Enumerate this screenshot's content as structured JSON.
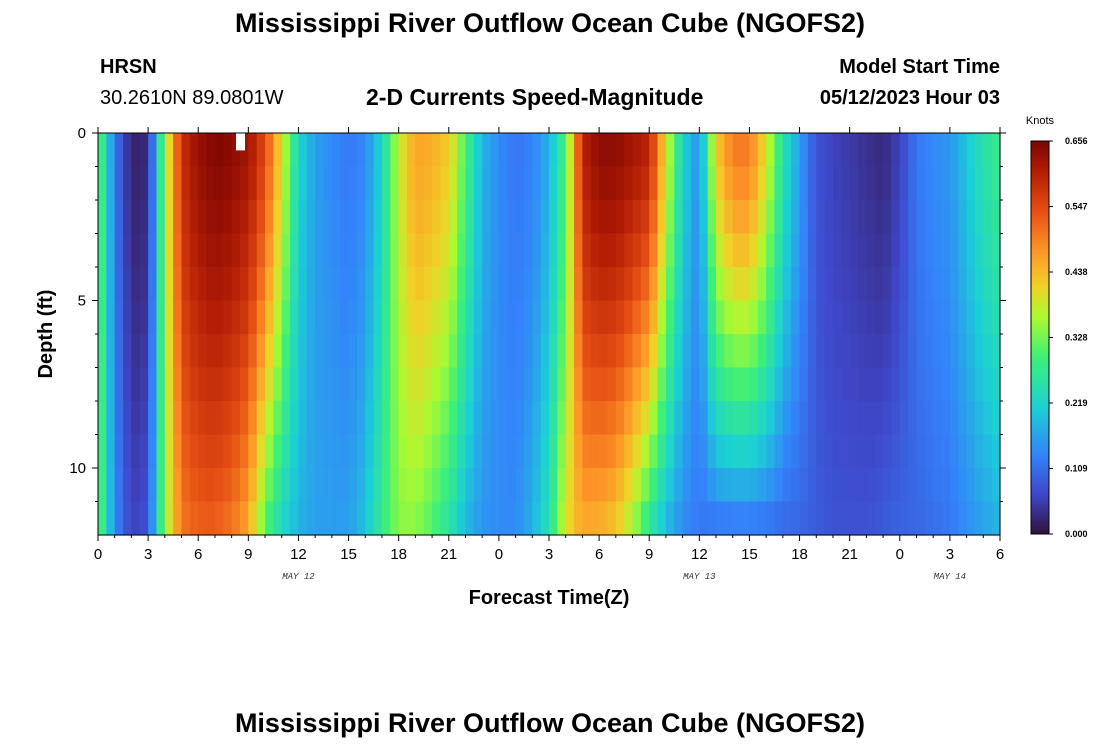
{
  "header": {
    "title": "Mississippi River Outflow Ocean Cube (NGOFS2)",
    "station": "HRSN",
    "coords": "30.2610N  89.0801W",
    "subtitle": "2-D Currents Speed-Magnitude",
    "model_start_label": "Model Start Time",
    "model_start_value": "05/12/2023 Hour 03"
  },
  "footer": {
    "title": "Mississippi River Outflow Ocean Cube (NGOFS2)"
  },
  "chart_data": {
    "type": "heatmap",
    "title": "2-D Currents Speed-Magnitude",
    "xlabel": "Forecast Time(Z)",
    "ylabel": "Depth (ft)",
    "xlim": [
      0,
      54
    ],
    "ylim": [
      12,
      0
    ],
    "x_ticks": [
      {
        "value": 0,
        "label": "0"
      },
      {
        "value": 3,
        "label": "3"
      },
      {
        "value": 6,
        "label": "6"
      },
      {
        "value": 9,
        "label": "9"
      },
      {
        "value": 12,
        "label": "12"
      },
      {
        "value": 15,
        "label": "15"
      },
      {
        "value": 18,
        "label": "18"
      },
      {
        "value": 21,
        "label": "21"
      },
      {
        "value": 24,
        "label": "0"
      },
      {
        "value": 27,
        "label": "3"
      },
      {
        "value": 30,
        "label": "6"
      },
      {
        "value": 33,
        "label": "9"
      },
      {
        "value": 36,
        "label": "12"
      },
      {
        "value": 39,
        "label": "15"
      },
      {
        "value": 42,
        "label": "18"
      },
      {
        "value": 45,
        "label": "21"
      },
      {
        "value": 48,
        "label": "0"
      },
      {
        "value": 51,
        "label": "3"
      },
      {
        "value": 54,
        "label": "6"
      }
    ],
    "y_ticks": [
      {
        "value": 0,
        "label": "0"
      },
      {
        "value": 5,
        "label": "5"
      },
      {
        "value": 10,
        "label": "10"
      }
    ],
    "date_labels": [
      {
        "value": 12,
        "label": "MAY 12"
      },
      {
        "value": 36,
        "label": "MAY 13"
      },
      {
        "value": 51,
        "label": "MAY 14"
      }
    ],
    "colorbar": {
      "unit": "Knots",
      "min": 0.0,
      "max": 0.656,
      "ticks": [
        "0.656",
        "0.547",
        "0.438",
        "0.328",
        "0.219",
        "0.109",
        "0.000"
      ]
    },
    "speed_profile": {
      "time_hours": [
        0,
        1,
        2,
        3,
        4,
        5,
        6,
        7,
        8,
        9,
        10,
        11,
        12,
        13,
        14,
        15,
        16,
        17,
        18,
        19,
        20,
        21,
        22,
        23,
        24,
        25,
        26,
        27,
        28,
        29,
        30,
        31,
        32,
        33,
        34,
        35,
        36,
        37,
        38,
        39,
        40,
        41,
        42,
        43,
        44,
        45,
        46,
        47,
        48,
        49,
        50,
        51,
        52,
        53,
        54
      ],
      "surface_knots": [
        0.33,
        0.12,
        0.02,
        0.03,
        0.35,
        0.58,
        0.63,
        0.65,
        0.64,
        0.62,
        0.55,
        0.4,
        0.22,
        0.16,
        0.14,
        0.12,
        0.14,
        0.22,
        0.38,
        0.46,
        0.45,
        0.42,
        0.3,
        0.18,
        0.14,
        0.12,
        0.13,
        0.18,
        0.3,
        0.6,
        0.64,
        0.64,
        0.62,
        0.6,
        0.4,
        0.22,
        0.14,
        0.42,
        0.5,
        0.5,
        0.4,
        0.25,
        0.16,
        0.08,
        0.06,
        0.05,
        0.04,
        0.03,
        0.06,
        0.12,
        0.14,
        0.15,
        0.2,
        0.25,
        0.28
      ],
      "bottom_knots": [
        0.33,
        0.14,
        0.06,
        0.08,
        0.35,
        0.5,
        0.52,
        0.52,
        0.5,
        0.45,
        0.3,
        0.22,
        0.18,
        0.16,
        0.16,
        0.16,
        0.2,
        0.28,
        0.34,
        0.34,
        0.3,
        0.25,
        0.18,
        0.15,
        0.14,
        0.14,
        0.18,
        0.25,
        0.4,
        0.45,
        0.44,
        0.42,
        0.35,
        0.25,
        0.18,
        0.14,
        0.12,
        0.11,
        0.11,
        0.11,
        0.11,
        0.1,
        0.1,
        0.09,
        0.08,
        0.08,
        0.08,
        0.09,
        0.1,
        0.1,
        0.11,
        0.12,
        0.14,
        0.16,
        0.18
      ]
    },
    "missing_cell": {
      "time_hours": 8.5,
      "depth_ft": 0.4
    }
  }
}
